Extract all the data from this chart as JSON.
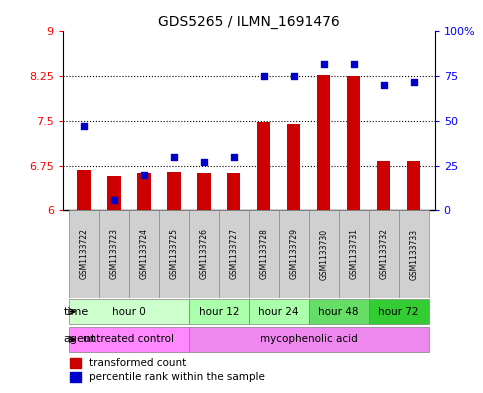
{
  "title": "GDS5265 / ILMN_1691476",
  "samples": [
    "GSM1133722",
    "GSM1133723",
    "GSM1133724",
    "GSM1133725",
    "GSM1133726",
    "GSM1133727",
    "GSM1133728",
    "GSM1133729",
    "GSM1133730",
    "GSM1133731",
    "GSM1133732",
    "GSM1133733"
  ],
  "bar_values": [
    6.68,
    6.58,
    6.62,
    6.65,
    6.63,
    6.63,
    7.48,
    7.45,
    8.27,
    8.26,
    6.82,
    6.83
  ],
  "scatter_values": [
    47,
    6,
    20,
    30,
    27,
    30,
    75,
    75,
    82,
    82,
    70,
    72
  ],
  "time_groups": [
    {
      "label": "hour 0",
      "cols": [
        0,
        1,
        2,
        3
      ],
      "color": "#ccffcc"
    },
    {
      "label": "hour 12",
      "cols": [
        4,
        5
      ],
      "color": "#aaffaa"
    },
    {
      "label": "hour 24",
      "cols": [
        6,
        7
      ],
      "color": "#aaffaa"
    },
    {
      "label": "hour 48",
      "cols": [
        8,
        9
      ],
      "color": "#66dd66"
    },
    {
      "label": "hour 72",
      "cols": [
        10,
        11
      ],
      "color": "#33cc33"
    }
  ],
  "agent_groups": [
    {
      "label": "untreated control",
      "cols": [
        0,
        1,
        2,
        3
      ],
      "color": "#ff88ff"
    },
    {
      "label": "mycophenolic acid",
      "cols": [
        4,
        5,
        6,
        7,
        8,
        9,
        10,
        11
      ],
      "color": "#ee88ee"
    }
  ],
  "ylim_left": [
    6,
    9
  ],
  "ylim_right": [
    0,
    100
  ],
  "yticks_left": [
    6,
    6.75,
    7.5,
    8.25,
    9
  ],
  "yticks_right": [
    0,
    25,
    50,
    75,
    100
  ],
  "bar_color": "#cc0000",
  "scatter_color": "#0000cc",
  "legend_labels": [
    "transformed count",
    "percentile rank within the sample"
  ],
  "background_color": "#ffffff",
  "label_bg_color": "#d0d0d0",
  "label_border_color": "#888888"
}
